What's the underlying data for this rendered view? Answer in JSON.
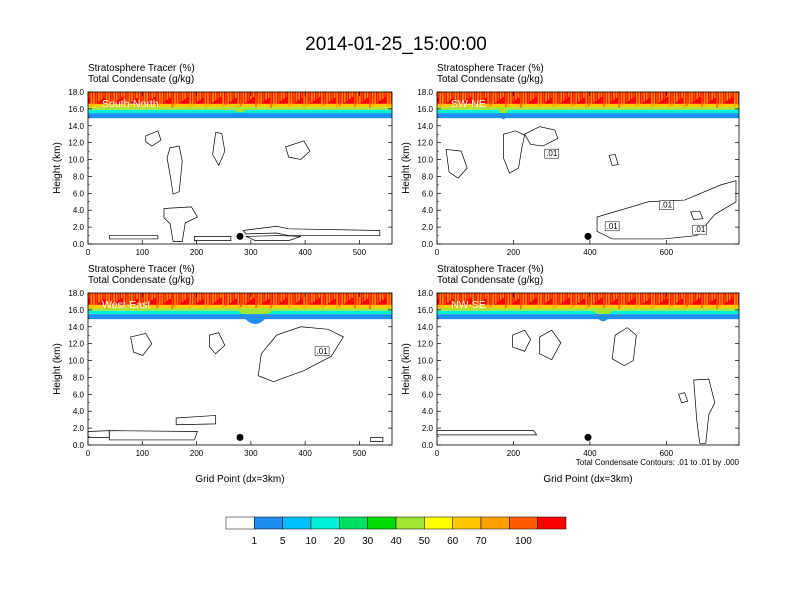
{
  "title": "2014-01-25_15:00:00",
  "panel_subtitle_line1": "Stratosphere Tracer   (%)",
  "panel_subtitle_line2": "Total Condensate   (g/kg)",
  "y_axis_label": "Height (km)",
  "x_axis_label": "Grid Point (dx=3km)",
  "contour_note": "Total Condensate Contours: .01 to .01 by .000",
  "colors": [
    "#ffffff",
    "#1e8ff0",
    "#00bfff",
    "#00f0d8",
    "#00e060",
    "#00dc00",
    "#a0e632",
    "#ffff00",
    "#ffc800",
    "#ffa000",
    "#ff5a00",
    "#ff0000"
  ],
  "colorbar_labels": [
    "1",
    "5",
    "10",
    "20",
    "30",
    "40",
    "50",
    "60",
    "70",
    "100"
  ],
  "chart_data": [
    {
      "type": "heatmap",
      "panel": "South-North",
      "title": "Stratosphere Tracer (%) / Total Condensate (g/kg)",
      "xlabel": "",
      "ylabel": "Height (km)",
      "xlim": [
        0,
        560
      ],
      "ylim": [
        0,
        18
      ],
      "xticks": [
        "0",
        "100",
        "200",
        "300",
        "400",
        "500"
      ],
      "yticks": [
        "0.0",
        "2.0",
        "4.0",
        "6.0",
        "8.0",
        "10.0",
        "12.0",
        "14.0",
        "16.0",
        "18.0"
      ],
      "tropopause_km": 15.8,
      "contour_labels": [],
      "marker_x": 280
    },
    {
      "type": "heatmap",
      "panel": "SW-NE",
      "title": "Stratosphere Tracer (%) / Total Condensate (g/kg)",
      "xlabel": "",
      "ylabel": "Height (km)",
      "xlim": [
        0,
        790
      ],
      "ylim": [
        0,
        18
      ],
      "xticks": [
        "0",
        "200",
        "400",
        "600"
      ],
      "yticks": [
        "0.0",
        "2.0",
        "4.0",
        "6.0",
        "8.0",
        "10.0",
        "12.0",
        "14.0",
        "16.0",
        "18.0"
      ],
      "tropopause_km": 15.8,
      "contour_labels": [
        ".01",
        ".01",
        ".01",
        ".01"
      ],
      "marker_x": 395
    },
    {
      "type": "heatmap",
      "panel": "West-East",
      "title": "Stratosphere Tracer (%) / Total Condensate (g/kg)",
      "xlabel": "Grid Point (dx=3km)",
      "ylabel": "Height (km)",
      "xlim": [
        0,
        560
      ],
      "ylim": [
        0,
        18
      ],
      "xticks": [
        "0",
        "100",
        "200",
        "300",
        "400",
        "500"
      ],
      "yticks": [
        "0.0",
        "2.0",
        "4.0",
        "6.0",
        "8.0",
        "10.0",
        "12.0",
        "14.0",
        "16.0",
        "18.0"
      ],
      "tropopause_km": 15.8,
      "contour_labels": [
        ".01"
      ],
      "marker_x": 280
    },
    {
      "type": "heatmap",
      "panel": "NW-SE",
      "title": "Stratosphere Tracer (%) / Total Condensate (g/kg)",
      "xlabel": "Grid Point (dx=3km)",
      "ylabel": "Height (km)",
      "xlim": [
        0,
        790
      ],
      "ylim": [
        0,
        18
      ],
      "xticks": [
        "0",
        "200",
        "400",
        "600"
      ],
      "yticks": [
        "0.0",
        "2.0",
        "4.0",
        "6.0",
        "8.0",
        "10.0",
        "12.0",
        "14.0",
        "16.0",
        "18.0"
      ],
      "tropopause_km": 15.8,
      "contour_labels": [],
      "marker_x": 395
    }
  ]
}
